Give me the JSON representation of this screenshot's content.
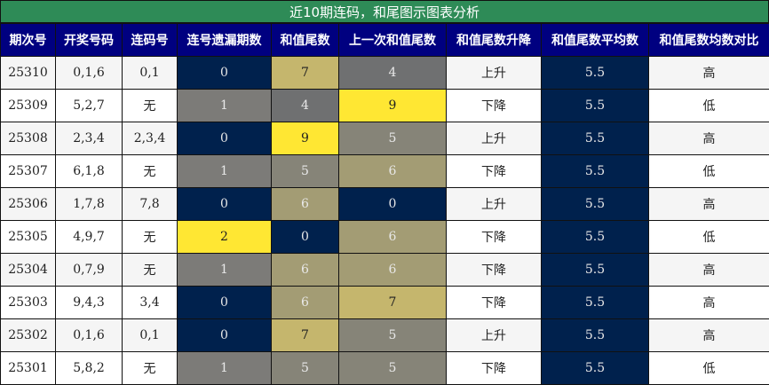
{
  "title": "近10期连码，和尾图示图表分析",
  "headers": [
    "期次号",
    "开奖号码",
    "连码号",
    "连号遗漏期数",
    "和值尾数",
    "上一次和值尾数",
    "和值尾数升降",
    "和值尾数平均数",
    "和值尾数均数对比"
  ],
  "value_colors": {
    "0": {
      "bg": "#00214d",
      "fg": "#e8e8e8"
    },
    "1": {
      "bg": "#7c7b78",
      "fg": "#e8e8e8"
    },
    "2": {
      "bg": "#ffe733",
      "fg": "#222222"
    },
    "4": {
      "bg": "#6f7071",
      "fg": "#e8e8e8"
    },
    "5": {
      "bg": "#868478",
      "fg": "#e8e8e8"
    },
    "6": {
      "bg": "#a39c74",
      "fg": "#e8e8e8"
    },
    "7": {
      "bg": "#c5b66d",
      "fg": "#222222"
    },
    "9": {
      "bg": "#ffe733",
      "fg": "#222222"
    }
  },
  "rows": [
    {
      "issue": "25310",
      "numbers": "0,1,6",
      "consecutive": "0,1",
      "miss": "0",
      "tail": "7",
      "prev_tail": "4",
      "trend": "上升",
      "avg": "5.5",
      "compare": "高"
    },
    {
      "issue": "25309",
      "numbers": "5,2,7",
      "consecutive": "无",
      "miss": "1",
      "tail": "4",
      "prev_tail": "9",
      "trend": "下降",
      "avg": "5.5",
      "compare": "低"
    },
    {
      "issue": "25308",
      "numbers": "2,3,4",
      "consecutive": "2,3,4",
      "miss": "0",
      "tail": "9",
      "prev_tail": "5",
      "trend": "上升",
      "avg": "5.5",
      "compare": "高"
    },
    {
      "issue": "25307",
      "numbers": "6,1,8",
      "consecutive": "无",
      "miss": "1",
      "tail": "5",
      "prev_tail": "6",
      "trend": "下降",
      "avg": "5.5",
      "compare": "低"
    },
    {
      "issue": "25306",
      "numbers": "1,7,8",
      "consecutive": "7,8",
      "miss": "0",
      "tail": "6",
      "prev_tail": "0",
      "trend": "上升",
      "avg": "5.5",
      "compare": "高"
    },
    {
      "issue": "25305",
      "numbers": "4,9,7",
      "consecutive": "无",
      "miss": "2",
      "tail": "0",
      "prev_tail": "6",
      "trend": "下降",
      "avg": "5.5",
      "compare": "低"
    },
    {
      "issue": "25304",
      "numbers": "0,7,9",
      "consecutive": "无",
      "miss": "1",
      "tail": "6",
      "prev_tail": "6",
      "trend": "下降",
      "avg": "5.5",
      "compare": "高"
    },
    {
      "issue": "25303",
      "numbers": "9,4,3",
      "consecutive": "3,4",
      "miss": "0",
      "tail": "6",
      "prev_tail": "7",
      "trend": "下降",
      "avg": "5.5",
      "compare": "高"
    },
    {
      "issue": "25302",
      "numbers": "0,1,6",
      "consecutive": "0,1",
      "miss": "0",
      "tail": "7",
      "prev_tail": "5",
      "trend": "上升",
      "avg": "5.5",
      "compare": "高"
    },
    {
      "issue": "25301",
      "numbers": "5,8,2",
      "consecutive": "无",
      "miss": "1",
      "tail": "5",
      "prev_tail": "5",
      "trend": "下降",
      "avg": "5.5",
      "compare": "低"
    }
  ]
}
